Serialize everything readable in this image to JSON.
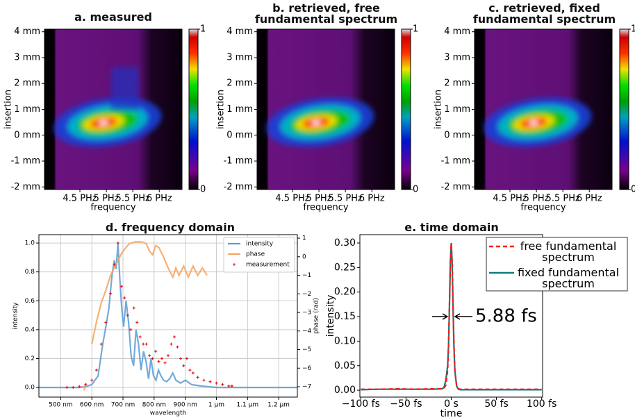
{
  "chart_data": [
    {
      "type": "heatmap",
      "title": "a. measured",
      "xlabel": "frequency",
      "ylabel": "insertion",
      "xlim": [
        3.83,
        6.43
      ],
      "ylim": [
        -2.1,
        4.1
      ],
      "xticks": [
        {
          "value": 4.5,
          "label": "4.5 PHz"
        },
        {
          "value": 5,
          "label": "5 PHz"
        },
        {
          "value": 5.5,
          "label": "5.5 PHz"
        },
        {
          "value": 6,
          "label": "6 PHz"
        }
      ],
      "yticks": [
        {
          "value": -2,
          "label": "-2 mm"
        },
        {
          "value": -1,
          "label": "-1 mm"
        },
        {
          "value": 0,
          "label": "0 mm"
        },
        {
          "value": 1,
          "label": "1 mm"
        },
        {
          "value": 2,
          "label": "2 mm"
        },
        {
          "value": 3,
          "label": "3 mm"
        },
        {
          "value": 4,
          "label": "4 mm"
        }
      ],
      "clim": [
        0,
        1
      ],
      "cticks": [
        0,
        1
      ]
    },
    {
      "type": "heatmap",
      "title": "b. retrieved, free fundamental spectrum",
      "xlabel": "frequency",
      "ylabel": "insertion",
      "xlim": [
        3.83,
        6.43
      ],
      "ylim": [
        -2.1,
        4.1
      ],
      "xticks": [
        {
          "value": 4.5,
          "label": "4.5 PHz"
        },
        {
          "value": 5,
          "label": "5 PHz"
        },
        {
          "value": 5.5,
          "label": "5.5 PHz"
        },
        {
          "value": 6,
          "label": "6 PHz"
        }
      ],
      "yticks": [
        {
          "value": -2,
          "label": "-2 mm"
        },
        {
          "value": -1,
          "label": "-1 mm"
        },
        {
          "value": 0,
          "label": "0 mm"
        },
        {
          "value": 1,
          "label": "1 mm"
        },
        {
          "value": 2,
          "label": "2 mm"
        },
        {
          "value": 3,
          "label": "3 mm"
        },
        {
          "value": 4,
          "label": "4 mm"
        }
      ],
      "clim": [
        0,
        1
      ],
      "cticks": [
        0,
        1
      ]
    },
    {
      "type": "heatmap",
      "title": "c. retrieved, fixed fundamental spectrum",
      "xlabel": "frequency",
      "ylabel": "insertion",
      "xlim": [
        3.83,
        6.43
      ],
      "ylim": [
        -2.1,
        4.1
      ],
      "xticks": [
        {
          "value": 4.5,
          "label": "4.5 PHz"
        },
        {
          "value": 5,
          "label": "5 PHz"
        },
        {
          "value": 5.5,
          "label": "5.5 PHz"
        },
        {
          "value": 6,
          "label": "6 PHz"
        }
      ],
      "yticks": [
        {
          "value": -2,
          "label": "-2 mm"
        },
        {
          "value": -1,
          "label": "-1 mm"
        },
        {
          "value": 0,
          "label": "0 mm"
        },
        {
          "value": 1,
          "label": "1 mm"
        },
        {
          "value": 2,
          "label": "2 mm"
        },
        {
          "value": 3,
          "label": "3 mm"
        },
        {
          "value": 4,
          "label": "4 mm"
        }
      ],
      "clim": [
        0,
        1
      ],
      "cticks": [
        0,
        1
      ]
    },
    {
      "type": "line",
      "title": "d. frequency domain",
      "xlabel": "wavelength",
      "ylabel": "intensity",
      "y2label": "phase (rad)",
      "grid": true,
      "legend": "upper right",
      "xlim": [
        430,
        1260
      ],
      "ylim": [
        -0.067,
        1.058
      ],
      "y2lim": [
        -7.56,
        1.19
      ],
      "xticks": [
        {
          "value": 500,
          "label": "500 nm"
        },
        {
          "value": 600,
          "label": "600 nm"
        },
        {
          "value": 700,
          "label": "700 nm"
        },
        {
          "value": 800,
          "label": "800 nm"
        },
        {
          "value": 900,
          "label": "900 nm"
        },
        {
          "value": 1000,
          "label": "1 µm"
        },
        {
          "value": 1100,
          "label": "1.1 µm"
        },
        {
          "value": 1200,
          "label": "1.2 µm"
        }
      ],
      "yticks": [
        {
          "value": 0,
          "label": "0.0"
        },
        {
          "value": 0.2,
          "label": "0.2"
        },
        {
          "value": 0.4,
          "label": "0.4"
        },
        {
          "value": 0.6,
          "label": "0.6"
        },
        {
          "value": 0.8,
          "label": "0.8"
        },
        {
          "value": 1,
          "label": "1.0"
        }
      ],
      "y2ticks": [
        1,
        0,
        {
          "value": -1,
          "label": "−1"
        },
        {
          "value": -2,
          "label": "−2"
        },
        {
          "value": -3,
          "label": "−3"
        },
        {
          "value": -4,
          "label": "−4"
        },
        {
          "value": -5,
          "label": "−5"
        },
        {
          "value": -6,
          "label": "−6"
        },
        {
          "value": -7,
          "label": "−7"
        }
      ],
      "series": [
        {
          "name": "intensity",
          "color": "#5b9bd5",
          "linestyle": "solid",
          "x": [
            430,
            500,
            560,
            580,
            600,
            620,
            635,
            645,
            655,
            665,
            672,
            678,
            684,
            690,
            696,
            702,
            710,
            718,
            726,
            734,
            742,
            750,
            758,
            766,
            774,
            782,
            790,
            798,
            806,
            814,
            822,
            830,
            840,
            850,
            860,
            870,
            885,
            900,
            920,
            950,
            1000,
            1050,
            1100,
            1200,
            1260
          ],
          "values": [
            0,
            0,
            0,
            0.005,
            0.02,
            0.08,
            0.3,
            0.42,
            0.55,
            0.78,
            0.88,
            0.82,
            1.0,
            0.75,
            0.55,
            0.42,
            0.6,
            0.45,
            0.22,
            0.15,
            0.4,
            0.3,
            0.12,
            0.25,
            0.18,
            0.06,
            0.2,
            0.08,
            0.05,
            0.12,
            0.08,
            0.05,
            0.04,
            0.06,
            0.1,
            0.05,
            0.03,
            0.05,
            0.02,
            0.01,
            0,
            0,
            0,
            0,
            0
          ]
        },
        {
          "name": "phase",
          "color": "#f5a35c",
          "linestyle": "solid",
          "axis": "y2",
          "x": [
            575,
            582,
            590,
            600,
            615,
            630,
            645,
            660,
            675,
            690,
            700,
            720,
            740,
            760,
            775,
            785,
            795,
            805,
            815,
            830,
            845,
            860,
            870,
            880,
            895,
            910,
            925,
            940,
            955,
            970
          ],
          "values": [
            -7.2,
            -6.8,
            null,
            -4.7,
            -3.5,
            -2.5,
            -1.8,
            -1,
            -0.5,
            0,
            0.3,
            0.7,
            0.8,
            0.8,
            0.7,
            0.3,
            0.1,
            0.6,
            0.5,
            0,
            -0.6,
            -1.1,
            -0.6,
            -1.0,
            -0.5,
            -1.1,
            -0.5,
            -1.0,
            -0.6,
            -1.0
          ]
        },
        {
          "name": "measurement",
          "color": "#e8141a",
          "linestyle": "none",
          "marker": "+",
          "x": [
            520,
            540,
            560,
            580,
            600,
            615,
            630,
            645,
            660,
            672,
            684,
            695,
            705,
            715,
            725,
            735,
            745,
            755,
            765,
            775,
            785,
            795,
            805,
            815,
            825,
            835,
            845,
            855,
            865,
            875,
            885,
            895,
            905,
            915,
            925,
            940,
            960,
            980,
            1000,
            1020,
            1040,
            1050
          ],
          "values": [
            0,
            0,
            0.005,
            0.02,
            0.05,
            0.12,
            0.3,
            0.45,
            0.65,
            0.85,
            1.0,
            0.7,
            0.62,
            0.5,
            0.4,
            0.55,
            0.45,
            0.35,
            0.3,
            0.3,
            0.22,
            0.2,
            0.25,
            0.18,
            0.2,
            0.17,
            0.22,
            0.3,
            0.35,
            0.28,
            0.2,
            0.15,
            0.2,
            0.12,
            0.1,
            0.07,
            0.05,
            0.04,
            0.03,
            0.02,
            0.01,
            0.01
          ]
        }
      ]
    },
    {
      "type": "line",
      "title": "e. time domain",
      "xlabel": "time",
      "ylabel": "intensity",
      "grid": false,
      "legend": "upper right",
      "annotation": "5.88 fs",
      "xlim": [
        -101,
        101
      ],
      "ylim": [
        -0.014,
        0.317
      ],
      "xticks": [
        {
          "value": -100,
          "label": "−100 fs"
        },
        {
          "value": -50,
          "label": "−50 fs"
        },
        {
          "value": 0,
          "label": "0 s"
        },
        {
          "value": 50,
          "label": "50 fs"
        },
        {
          "value": 100,
          "label": "100 fs"
        }
      ],
      "yticks": [
        {
          "value": 0,
          "label": "0.00"
        },
        {
          "value": 0.05,
          "label": "0.05"
        },
        {
          "value": 0.1,
          "label": "0.10"
        },
        {
          "value": 0.15,
          "label": "0.15"
        },
        {
          "value": 0.2,
          "label": "0.20"
        },
        {
          "value": 0.25,
          "label": "0.25"
        },
        {
          "value": 0.3,
          "label": "0.30"
        }
      ],
      "series": [
        {
          "name": "free fundamental spectrum",
          "color": "#ff1a1a",
          "linestyle": "dashed",
          "x": [
            -100,
            -80,
            -60,
            -40,
            -20,
            -10,
            -8,
            -6,
            -4,
            -3,
            -2,
            -1,
            0,
            1,
            2,
            3,
            4,
            6,
            8,
            10,
            20,
            40,
            60,
            80,
            100
          ],
          "values": [
            0.002,
            0.002,
            0.003,
            0.002,
            0.003,
            0.003,
            0.004,
            0.01,
            0.04,
            0.09,
            0.17,
            0.26,
            0.3,
            0.26,
            0.17,
            0.09,
            0.04,
            0.008,
            0.003,
            0.002,
            0.002,
            0.002,
            0.002,
            0.002,
            0.002
          ]
        },
        {
          "name": "fixed fundamental spectrum",
          "color": "#117a7a",
          "linestyle": "solid",
          "x": [
            -100,
            -80,
            -60,
            -40,
            -20,
            -10,
            -8,
            -6,
            -4,
            -3,
            -2,
            -1,
            0,
            1,
            2,
            3,
            4,
            6,
            8,
            10,
            20,
            40,
            60,
            80,
            100
          ],
          "values": [
            0.001,
            0.002,
            0.002,
            0.002,
            0.002,
            0.003,
            0.006,
            0.02,
            0.05,
            0.09,
            0.17,
            0.26,
            0.3,
            0.26,
            0.17,
            0.09,
            0.04,
            0.008,
            0.002,
            0.001,
            0.001,
            0.001,
            0.001,
            0.001,
            0.001
          ]
        }
      ]
    }
  ]
}
